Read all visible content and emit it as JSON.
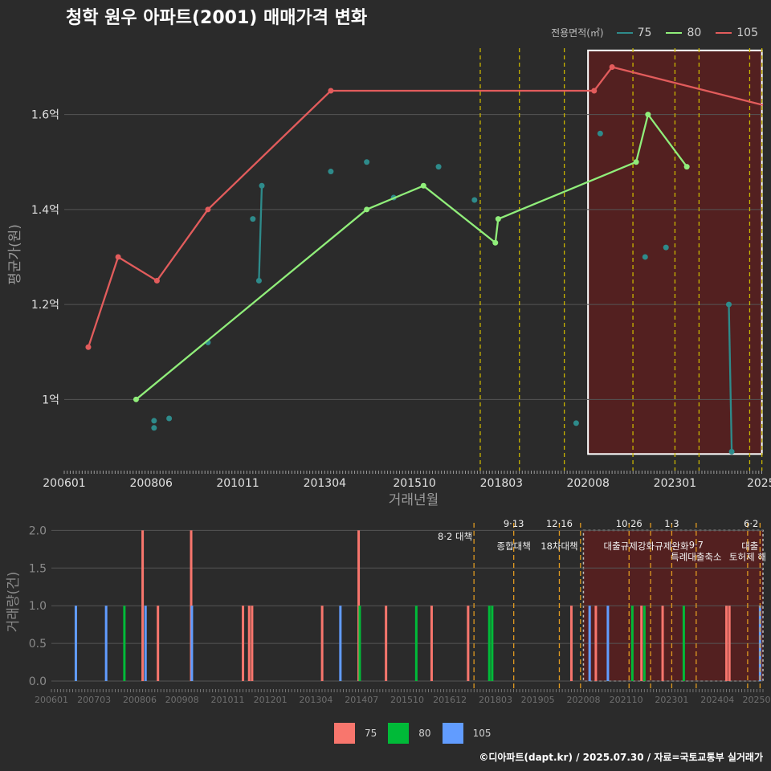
{
  "title": "청학 원우 아파트(2001) 매매가격 변화",
  "credit": "©디아파트(dapt.kr) / 2025.07.30 / 자료=국토교통부 실거래가",
  "colors": {
    "background": "#2b2b2b",
    "grid": "#555555",
    "policy_line": "#c8b400",
    "highlight_fill": "#5a1f1f",
    "s75": "#2e8b8b",
    "s80": "#90ee7a",
    "s105": "#e25c5c",
    "vol75": "#f8766d",
    "vol80": "#00ba38",
    "vol105": "#619cff"
  },
  "legend_top": {
    "title": "전용면적(㎡)",
    "items": [
      {
        "label": "75",
        "color": "#2e8b8b"
      },
      {
        "label": "80",
        "color": "#90ee7a"
      },
      {
        "label": "105",
        "color": "#e25c5c"
      }
    ]
  },
  "legend_bottom": {
    "items": [
      {
        "label": "75",
        "color": "#f8766d"
      },
      {
        "label": "80",
        "color": "#00ba38"
      },
      {
        "label": "105",
        "color": "#619cff"
      }
    ]
  },
  "chart_data": [
    {
      "type": "line",
      "name": "price",
      "title": "청학 원우 아파트(2001) 매매가격 변화",
      "xlabel": "거래년월",
      "ylabel": "평균가(원)",
      "xlim": [
        2006.0,
        2025.45
      ],
      "ylim": [
        0.85,
        1.76
      ],
      "x_ticks": [
        {
          "label": "200601",
          "x": 2006.0
        },
        {
          "label": "200806",
          "x": 2008.42
        },
        {
          "label": "201011",
          "x": 2010.83
        },
        {
          "label": "201304",
          "x": 2013.25
        },
        {
          "label": "201510",
          "x": 2015.75
        },
        {
          "label": "201803",
          "x": 2018.17
        },
        {
          "label": "202008",
          "x": 2020.58
        },
        {
          "label": "202301",
          "x": 2023.0
        },
        {
          "label": "2025",
          "x": 2025.4
        }
      ],
      "y_ticks": [
        {
          "label": "1억",
          "y": 1.0
        },
        {
          "label": "1.2억",
          "y": 1.2
        },
        {
          "label": "1.4억",
          "y": 1.4
        },
        {
          "label": "1.6억",
          "y": 1.6
        }
      ],
      "series": [
        {
          "name": "75",
          "color": "#2e8b8b",
          "line_segments": [
            [
              [
                2011.42,
                1.25
              ],
              [
                2011.5,
                1.45
              ]
            ],
            [
              [
                2024.5,
                1.2
              ],
              [
                2024.58,
                0.89
              ]
            ]
          ],
          "points": [
            [
              2008.5,
              0.955
            ],
            [
              2008.5,
              0.94
            ],
            [
              2008.92,
              0.96
            ],
            [
              2010.0,
              1.12
            ],
            [
              2011.25,
              1.38
            ],
            [
              2011.42,
              1.25
            ],
            [
              2011.5,
              1.45
            ],
            [
              2013.42,
              1.48
            ],
            [
              2014.42,
              1.5
            ],
            [
              2015.17,
              1.425
            ],
            [
              2016.42,
              1.49
            ],
            [
              2017.42,
              1.42
            ],
            [
              2020.25,
              0.95
            ],
            [
              2020.92,
              1.56
            ],
            [
              2022.17,
              1.3
            ],
            [
              2022.75,
              1.32
            ],
            [
              2024.5,
              1.2
            ],
            [
              2024.58,
              0.89
            ]
          ]
        },
        {
          "name": "80",
          "color": "#90ee7a",
          "line_segments": [
            [
              [
                2008.0,
                1.0
              ],
              [
                2014.42,
                1.4
              ],
              [
                2016.0,
                1.45
              ],
              [
                2018.0,
                1.33
              ],
              [
                2018.08,
                1.38
              ],
              [
                2021.92,
                1.5
              ],
              [
                2022.25,
                1.6
              ],
              [
                2023.33,
                1.49
              ]
            ]
          ],
          "points": [
            [
              2008.0,
              1.0
            ],
            [
              2014.42,
              1.4
            ],
            [
              2016.0,
              1.45
            ],
            [
              2018.0,
              1.33
            ],
            [
              2018.08,
              1.38
            ],
            [
              2021.92,
              1.5
            ],
            [
              2022.25,
              1.6
            ],
            [
              2023.33,
              1.49
            ]
          ]
        },
        {
          "name": "105",
          "color": "#e25c5c",
          "line_segments": [
            [
              [
                2006.67,
                1.11
              ],
              [
                2007.5,
                1.3
              ],
              [
                2008.58,
                1.25
              ],
              [
                2010.0,
                1.4
              ],
              [
                2013.42,
                1.65
              ],
              [
                2020.75,
                1.65
              ],
              [
                2021.25,
                1.7
              ],
              [
                2025.45,
                1.62
              ]
            ]
          ],
          "points": [
            [
              2006.67,
              1.11
            ],
            [
              2007.5,
              1.3
            ],
            [
              2008.58,
              1.25
            ],
            [
              2010.0,
              1.4
            ],
            [
              2013.42,
              1.65
            ],
            [
              2020.75,
              1.65
            ],
            [
              2021.25,
              1.7
            ]
          ]
        }
      ],
      "policy_lines_x": [
        2017.58,
        2018.67,
        2019.92,
        2021.83,
        2023.0,
        2023.67,
        2025.08,
        2025.42
      ],
      "highlight": {
        "x_from": 2020.58,
        "x_to": 2025.42,
        "y_from": 0.885,
        "y_to": 1.735
      }
    },
    {
      "type": "bar",
      "name": "volume",
      "xlabel": "",
      "ylabel": "거래량(건)",
      "xlim": [
        2006.0,
        2025.5
      ],
      "ylim": [
        0,
        2.1
      ],
      "x_ticks": [
        {
          "label": "200601",
          "x": 2006.0
        },
        {
          "label": "200703",
          "x": 2007.17
        },
        {
          "label": "200806",
          "x": 2008.42
        },
        {
          "label": "200908",
          "x": 2009.58
        },
        {
          "label": "201011",
          "x": 2010.83
        },
        {
          "label": "201201",
          "x": 2012.0
        },
        {
          "label": "201304",
          "x": 2013.25
        },
        {
          "label": "201407",
          "x": 2014.5
        },
        {
          "label": "201510",
          "x": 2015.75
        },
        {
          "label": "201612",
          "x": 2016.92
        },
        {
          "label": "201803",
          "x": 2018.17
        },
        {
          "label": "201905",
          "x": 2019.33
        },
        {
          "label": "202008",
          "x": 2020.58
        },
        {
          "label": "202110",
          "x": 2021.75
        },
        {
          "label": "202301",
          "x": 2023.0
        },
        {
          "label": "202404",
          "x": 2024.25
        },
        {
          "label": "202506",
          "x": 2025.4
        }
      ],
      "y_ticks": [
        {
          "label": "0.0",
          "y": 0.0
        },
        {
          "label": "0.5",
          "y": 0.5
        },
        {
          "label": "1.0",
          "y": 1.0
        },
        {
          "label": "1.5",
          "y": 1.5
        },
        {
          "label": "2.0",
          "y": 2.0
        }
      ],
      "bars": [
        {
          "x": 2006.67,
          "v": 1,
          "s": "105"
        },
        {
          "x": 2007.5,
          "v": 1,
          "s": "105"
        },
        {
          "x": 2008.0,
          "v": 1,
          "s": "80"
        },
        {
          "x": 2008.5,
          "v": 2,
          "s": "75"
        },
        {
          "x": 2008.58,
          "v": 1,
          "s": "105"
        },
        {
          "x": 2008.92,
          "v": 1,
          "s": "75"
        },
        {
          "x": 2009.83,
          "v": 2,
          "s": "75"
        },
        {
          "x": 2009.85,
          "v": 1,
          "s": "105"
        },
        {
          "x": 2011.25,
          "v": 1,
          "s": "75"
        },
        {
          "x": 2011.42,
          "v": 1,
          "s": "75"
        },
        {
          "x": 2011.5,
          "v": 1,
          "s": "75"
        },
        {
          "x": 2013.42,
          "v": 1,
          "s": "75"
        },
        {
          "x": 2013.92,
          "v": 1,
          "s": "105"
        },
        {
          "x": 2014.42,
          "v": 2,
          "s": "75"
        },
        {
          "x": 2014.45,
          "v": 1,
          "s": "80"
        },
        {
          "x": 2015.17,
          "v": 1,
          "s": "75"
        },
        {
          "x": 2016.0,
          "v": 1,
          "s": "80"
        },
        {
          "x": 2016.42,
          "v": 1,
          "s": "75"
        },
        {
          "x": 2017.42,
          "v": 1,
          "s": "75"
        },
        {
          "x": 2018.0,
          "v": 1,
          "s": "80"
        },
        {
          "x": 2018.08,
          "v": 1,
          "s": "80"
        },
        {
          "x": 2020.25,
          "v": 1,
          "s": "75"
        },
        {
          "x": 2020.75,
          "v": 1,
          "s": "105"
        },
        {
          "x": 2020.92,
          "v": 1,
          "s": "75"
        },
        {
          "x": 2021.25,
          "v": 1,
          "s": "105"
        },
        {
          "x": 2021.92,
          "v": 1,
          "s": "80"
        },
        {
          "x": 2022.17,
          "v": 1,
          "s": "75"
        },
        {
          "x": 2022.25,
          "v": 1,
          "s": "80"
        },
        {
          "x": 2022.75,
          "v": 1,
          "s": "75"
        },
        {
          "x": 2023.33,
          "v": 1,
          "s": "80"
        },
        {
          "x": 2024.5,
          "v": 1,
          "s": "75"
        },
        {
          "x": 2024.58,
          "v": 1,
          "s": "75"
        },
        {
          "x": 2025.42,
          "v": 1,
          "s": "105"
        }
      ],
      "policy_lines_x": [
        2017.58,
        2018.67,
        2019.92,
        2020.5,
        2021.83,
        2022.42,
        2023.0,
        2023.67,
        2025.08,
        2025.42
      ],
      "highlight": {
        "x_from": 2020.58,
        "x_to": 2025.5,
        "y_from": 0,
        "y_to": 2.0
      },
      "annotations": [
        {
          "x": 2017.58,
          "row": 0,
          "text": "8·2 대책",
          "anchor": "end"
        },
        {
          "x": 2018.67,
          "row": -1,
          "text": "9·13",
          "anchor": "middle"
        },
        {
          "x": 2018.67,
          "row": 0.75,
          "text": "종합대책",
          "anchor": "middle"
        },
        {
          "x": 2019.92,
          "row": -1,
          "text": "12·16",
          "anchor": "middle"
        },
        {
          "x": 2019.92,
          "row": 0.75,
          "text": "18차대책",
          "anchor": "middle"
        },
        {
          "x": 2021.83,
          "row": -1,
          "text": "10·26",
          "anchor": "middle"
        },
        {
          "x": 2021.83,
          "row": 0.75,
          "text": "대출규제강화",
          "anchor": "middle"
        },
        {
          "x": 2023.0,
          "row": -1,
          "text": "1·3",
          "anchor": "middle"
        },
        {
          "x": 2023.0,
          "row": 0.75,
          "text": "규제완화",
          "anchor": "middle"
        },
        {
          "x": 2023.67,
          "row": 0.65,
          "text": "9·7",
          "anchor": "middle"
        },
        {
          "x": 2023.67,
          "row": 1.6,
          "text": "특례대출축소",
          "anchor": "middle"
        },
        {
          "x": 2025.08,
          "row": 1.6,
          "text": "토허제 해",
          "anchor": "middle"
        },
        {
          "x": 2025.42,
          "row": -1,
          "text": "6·2",
          "anchor": "end"
        },
        {
          "x": 2025.42,
          "row": 0.75,
          "text": "대출",
          "anchor": "end"
        }
      ]
    }
  ]
}
